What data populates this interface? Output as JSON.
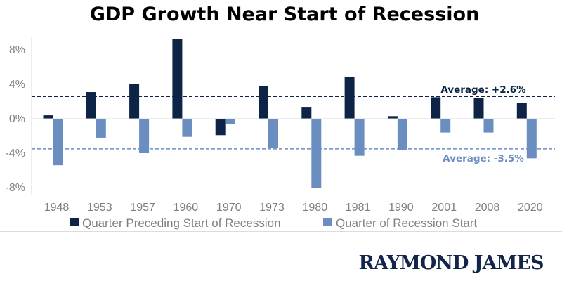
{
  "chart_data": {
    "type": "bar",
    "title": "GDP Growth Near Start of Recession",
    "categories": [
      "1948",
      "1953",
      "1957",
      "1960",
      "1970",
      "1973",
      "1980",
      "1981",
      "1990",
      "2001",
      "2008",
      "2020"
    ],
    "series": [
      {
        "name": "Quarter Preceding Start of Recession",
        "color": "#0e2447",
        "values": [
          0.4,
          3.1,
          4.0,
          9.3,
          -1.9,
          3.8,
          1.3,
          4.9,
          0.3,
          2.5,
          2.4,
          1.8
        ]
      },
      {
        "name": "Quarter of Recession Start",
        "color": "#6b8ec1",
        "values": [
          -5.4,
          -2.2,
          -4.0,
          -2.1,
          -0.6,
          -3.4,
          -8.0,
          -4.3,
          -3.6,
          -1.6,
          -1.6,
          -4.6
        ]
      }
    ],
    "ylim": [
      -8,
      10
    ],
    "yticks": [
      8,
      4,
      0,
      -4,
      -8
    ],
    "ytick_labels": [
      "8%",
      "4%",
      "0%",
      "-4%",
      "-8%"
    ],
    "xlabel": "",
    "ylabel": "",
    "legend_position": "bottom",
    "grid": false,
    "reference_lines": [
      {
        "value": 2.6,
        "label": "Average: +2.6%",
        "color": "#0e2447",
        "style": "dashed"
      },
      {
        "value": -3.5,
        "label": "Average: -3.5%",
        "color": "#6b8ec1",
        "style": "dashed"
      }
    ]
  },
  "branding": {
    "logo_text": "RAYMOND JAMES"
  }
}
